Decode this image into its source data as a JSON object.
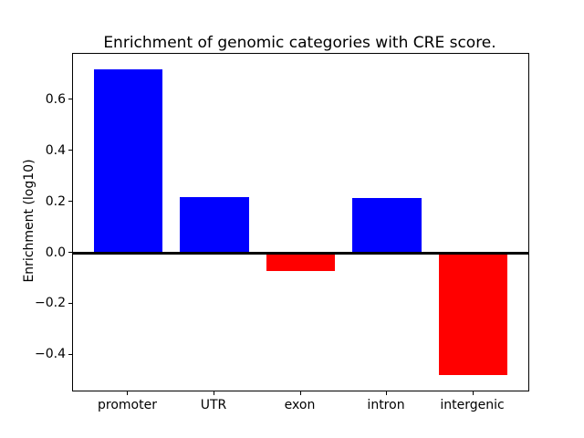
{
  "chart_data": {
    "type": "bar",
    "title": "Enrichment of genomic categories with CRE score.",
    "xlabel": "",
    "ylabel": "Enrichment (log10)",
    "categories": [
      "promoter",
      "UTR",
      "exon",
      "intron",
      "intergenic"
    ],
    "values": [
      0.72,
      0.22,
      -0.07,
      0.215,
      -0.48
    ],
    "yticks": [
      0.6,
      0.4,
      0.2,
      0.0,
      -0.2,
      -0.4
    ],
    "ylim": [
      -0.54,
      0.78
    ],
    "xlim": [
      -0.64,
      4.64
    ],
    "bar_unit_width": 0.8,
    "positive_color": "#0000ff",
    "negative_color": "#ff0000",
    "zero_line_color": "#000000",
    "axes_edge_color": "#000000",
    "background_color": "#ffffff",
    "grid": false,
    "legend": null
  }
}
